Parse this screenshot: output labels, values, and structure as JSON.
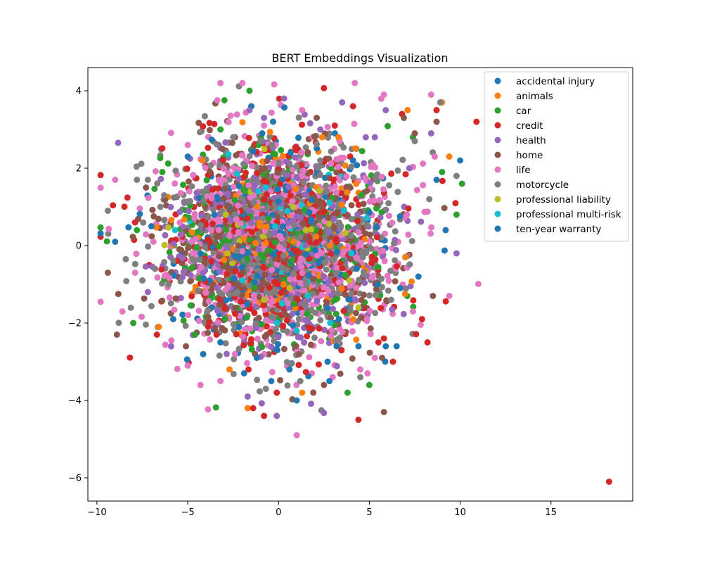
{
  "chart_data": {
    "type": "scatter",
    "title": "BERT Embeddings Visualization",
    "xlabel": "",
    "ylabel": "",
    "xlim": [
      -10.5,
      19.5
    ],
    "ylim": [
      -6.6,
      4.6
    ],
    "xticks": [
      -10,
      -5,
      0,
      5,
      10,
      15
    ],
    "yticks": [
      -6,
      -4,
      -2,
      0,
      2,
      4
    ],
    "tick_labels_x": [
      "−10",
      "−5",
      "0",
      "5",
      "10",
      "15"
    ],
    "tick_labels_y": [
      "−6",
      "−4",
      "−2",
      "0",
      "2",
      "4"
    ],
    "grid": false,
    "legend_position": "top-right",
    "series": [
      {
        "name": "accidental injury",
        "color": "#1f77b4",
        "spread": 1.0,
        "points": [
          [
            -9.0,
            0.1
          ],
          [
            10.0,
            2.2
          ],
          [
            6.5,
            -2.6
          ],
          [
            5.9,
            -2.6
          ],
          [
            1.0,
            -4.0
          ],
          [
            2.8,
            -3.5
          ],
          [
            -1.5,
            3.6
          ],
          [
            -0.3,
            3.2
          ],
          [
            -0.9,
            2.9
          ],
          [
            3.1,
            2.9
          ],
          [
            -7.0,
            0.5
          ],
          [
            -5.0,
            2.3
          ],
          [
            8.7,
            1.7
          ],
          [
            9.2,
            0.4
          ],
          [
            -3.2,
            -2.5
          ],
          [
            4.4,
            -2.6
          ]
        ]
      },
      {
        "name": "animals",
        "color": "#ff7f0e",
        "spread": 0.9,
        "points": [
          [
            -6.6,
            -2.1
          ],
          [
            -1.7,
            -4.2
          ],
          [
            1.3,
            -3.8
          ],
          [
            7.1,
            3.5
          ],
          [
            9.0,
            3.7
          ],
          [
            9.4,
            2.3
          ],
          [
            -2.7,
            -3.2
          ],
          [
            4.1,
            -1.9
          ],
          [
            2.4,
            2.8
          ],
          [
            3.3,
            2.8
          ],
          [
            -4.2,
            2.2
          ]
        ]
      },
      {
        "name": "car",
        "color": "#2ca02c",
        "spread": 1.0,
        "points": [
          [
            -1.6,
            4.0
          ],
          [
            -8.0,
            -2.0
          ],
          [
            -3.2,
            3.0
          ],
          [
            3.8,
            -3.8
          ],
          [
            5.0,
            -3.6
          ],
          [
            10.1,
            1.6
          ],
          [
            9.0,
            1.9
          ],
          [
            9.8,
            0.8
          ],
          [
            -6.4,
            1.9
          ],
          [
            7.4,
            2.8
          ],
          [
            -4.6,
            -2.3
          ],
          [
            -1.1,
            2.6
          ],
          [
            -7.8,
            0.4
          ]
        ]
      },
      {
        "name": "credit",
        "color": "#d62728",
        "spread": 1.0,
        "points": [
          [
            18.2,
            -6.1
          ],
          [
            10.9,
            3.2
          ],
          [
            4.4,
            -4.5
          ],
          [
            -0.8,
            -4.4
          ],
          [
            -1.4,
            -4.2
          ],
          [
            -0.1,
            -3.8
          ],
          [
            8.2,
            -2.5
          ],
          [
            7.9,
            -1.9
          ],
          [
            3.1,
            3.1
          ],
          [
            4.1,
            3.6
          ],
          [
            6.8,
            3.4
          ],
          [
            -7.9,
            0.6
          ],
          [
            -6.7,
            -2.3
          ],
          [
            5.8,
            -2.4
          ],
          [
            6.3,
            -3.0
          ],
          [
            8.7,
            3.5
          ],
          [
            5.5,
            -2.5
          ]
        ]
      },
      {
        "name": "health",
        "color": "#9467bd",
        "spread": 1.0,
        "points": [
          [
            0.3,
            3.8
          ],
          [
            3.5,
            3.7
          ],
          [
            -1.6,
            3.5
          ],
          [
            8.4,
            2.9
          ],
          [
            9.8,
            -0.2
          ],
          [
            -1.7,
            -3.9
          ],
          [
            -0.1,
            -4.4
          ],
          [
            2.3,
            3.0
          ],
          [
            4.8,
            2.8
          ],
          [
            5.3,
            2.8
          ],
          [
            -0.8,
            3.3
          ],
          [
            5.9,
            3.5
          ],
          [
            -7.2,
            -1.2
          ],
          [
            7.2,
            2.0
          ]
        ]
      },
      {
        "name": "home",
        "color": "#8c564b",
        "spread": 1.0,
        "points": [
          [
            -9.4,
            -0.7
          ],
          [
            -8.9,
            -2.3
          ],
          [
            5.8,
            -4.3
          ],
          [
            2.1,
            3.3
          ],
          [
            6.9,
            3.3
          ],
          [
            8.7,
            3.2
          ],
          [
            -3.1,
            2.5
          ],
          [
            -2.4,
            2.8
          ],
          [
            -1.3,
            -2.8
          ],
          [
            2.5,
            -3.6
          ],
          [
            5.7,
            -2.9
          ],
          [
            8.5,
            -1.3
          ],
          [
            7.5,
            2.9
          ],
          [
            -7.3,
            1.5
          ],
          [
            -5.1,
            -2.6
          ]
        ]
      },
      {
        "name": "life",
        "color": "#e377c2",
        "spread": 1.1,
        "points": [
          [
            -9.0,
            1.7
          ],
          [
            -8.6,
            -1.7
          ],
          [
            -7.9,
            -0.7
          ],
          [
            -4.3,
            -3.6
          ],
          [
            -3.2,
            -3.5
          ],
          [
            1.0,
            -4.9
          ],
          [
            5.8,
            3.9
          ],
          [
            8.4,
            3.9
          ],
          [
            8.6,
            2.3
          ],
          [
            9.4,
            -1.3
          ],
          [
            1.3,
            3.5
          ],
          [
            -0.8,
            3.1
          ],
          [
            -5.0,
            2.6
          ],
          [
            -5.0,
            -3.1
          ],
          [
            5.3,
            -2.9
          ],
          [
            4.9,
            -3.3
          ],
          [
            7.4,
            -1.7
          ],
          [
            4.5,
            -3.2
          ],
          [
            -2.4,
            -2.8
          ]
        ]
      },
      {
        "name": "motorcycle",
        "color": "#7f7f7f",
        "spread": 1.0,
        "points": [
          [
            -9.4,
            0.9
          ],
          [
            -7.2,
            1.7
          ],
          [
            -7.8,
            1.7
          ],
          [
            -7.5,
            -0.9
          ],
          [
            -6.8,
            -0.6
          ],
          [
            9.8,
            1.8
          ],
          [
            8.9,
            3.7
          ],
          [
            1.2,
            -3.5
          ],
          [
            -0.7,
            -3.7
          ],
          [
            4.5,
            -3.4
          ],
          [
            -2.5,
            2.8
          ],
          [
            7.5,
            2.7
          ],
          [
            -1.0,
            2.7
          ],
          [
            8.3,
            1.2
          ],
          [
            -6.3,
            1.3
          ],
          [
            6.2,
            -1.4
          ]
        ]
      },
      {
        "name": "professional liability",
        "color": "#bcbd22",
        "spread": 0.8,
        "points": [
          [
            -2.9,
            0.8
          ],
          [
            -2.8,
            -0.2
          ],
          [
            0.6,
            -1.1
          ],
          [
            3.9,
            -0.9
          ],
          [
            -0.8,
            -1.4
          ],
          [
            4.4,
            -1.6
          ],
          [
            1.5,
            0.4
          ]
        ]
      },
      {
        "name": "professional multi-risk",
        "color": "#17becf",
        "spread": 0.8,
        "points": [
          [
            -1.1,
            1.4
          ],
          [
            -0.7,
            1.5
          ],
          [
            3.6,
            0.9
          ],
          [
            -5.7,
            0.4
          ],
          [
            1.0,
            -2.2
          ],
          [
            -2.0,
            -0.9
          ],
          [
            0.2,
            -1.5
          ],
          [
            4.0,
            -0.2
          ],
          [
            -0.1,
            -2.0
          ],
          [
            2.8,
            1.1
          ],
          [
            -0.2,
            0.5
          ],
          [
            1.6,
            -1.3
          ]
        ]
      },
      {
        "name": "ten-year warranty",
        "color": "#1f77b4",
        "spread": 0.8,
        "points": [
          [
            -1.9,
            -3.3
          ],
          [
            -1.2,
            -2.9
          ],
          [
            3.2,
            -2.6
          ],
          [
            2.7,
            -3.0
          ],
          [
            4.1,
            2.2
          ],
          [
            -5.8,
            -1.9
          ],
          [
            0.6,
            -3.2
          ],
          [
            -0.4,
            -3.5
          ],
          [
            7.7,
            -0.8
          ],
          [
            6.7,
            -1.1
          ]
        ]
      }
    ]
  }
}
